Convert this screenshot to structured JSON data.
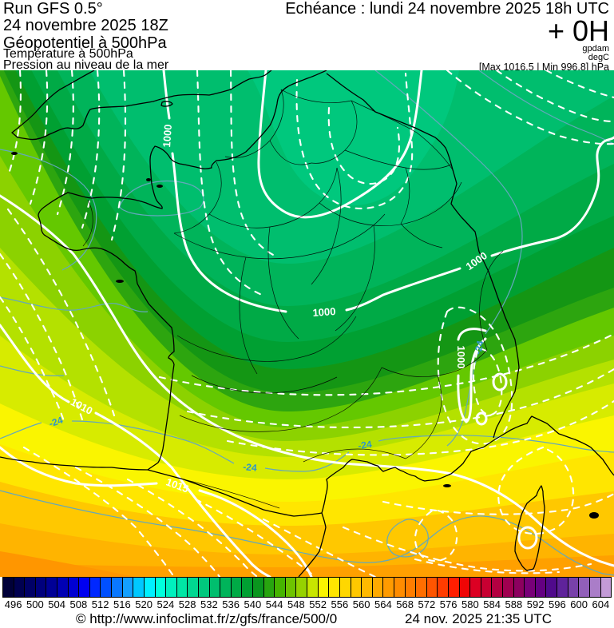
{
  "header": {
    "run_title": "Run GFS 0.5°",
    "run_date": "24 novembre 2025 18Z",
    "field1": "Géopotentiel à 500hPa",
    "field2": "Température à 500hPa",
    "field3": "Pression au niveau de la mer",
    "echeance": "Echéance : lundi 24 novembre 2025 18h UTC",
    "step": "+ 0H",
    "unit_geopotential": "gpdam",
    "unit_temperature": "degC",
    "pressure_minmax": "[Max 1016.5 | Min 996.8] hPa"
  },
  "map": {
    "pressure_contour_labels": [
      {
        "text": "1000"
      },
      {
        "text": "1000"
      },
      {
        "text": "1000"
      },
      {
        "text": "1000"
      },
      {
        "text": "1010"
      },
      {
        "text": "1015"
      }
    ],
    "temperature_contour_labels": [
      {
        "text": "-24"
      },
      {
        "text": "-24"
      },
      {
        "text": "-24"
      },
      {
        "text": "-24"
      }
    ]
  },
  "colorbar": {
    "start_value": 494,
    "step": 2,
    "cells": [
      "#000038",
      "#000050",
      "#000066",
      "#00007D",
      "#000096",
      "#0000B4",
      "#0000D2",
      "#0000F0",
      "#0028FF",
      "#0050FF",
      "#0A78FF",
      "#14A0FF",
      "#00C8FF",
      "#00F0FF",
      "#00FFDC",
      "#00F0BE",
      "#00E6A5",
      "#00D791",
      "#00C87D",
      "#00BE6E",
      "#00B45A",
      "#00AA46",
      "#00A032",
      "#0A961E",
      "#28A50F",
      "#46B400",
      "#6EC300",
      "#96D200",
      "#C8E600",
      "#FAF500",
      "#FFE600",
      "#FFD700",
      "#FFC800",
      "#FFB900",
      "#FFAA00",
      "#FF9B00",
      "#FF8C00",
      "#FF7D00",
      "#FF6E00",
      "#FF5500",
      "#FF3C00",
      "#FF1E00",
      "#F00505",
      "#DC0023",
      "#C80032",
      "#B40041",
      "#A00050",
      "#8C005F",
      "#780078",
      "#640082",
      "#500A8C",
      "#5F239B",
      "#7841AA",
      "#915FB9",
      "#AA7DC8",
      "#C39BD7"
    ],
    "ticks": [
      496,
      500,
      504,
      508,
      512,
      516,
      520,
      524,
      528,
      532,
      536,
      540,
      544,
      548,
      552,
      556,
      560,
      564,
      568,
      572,
      576,
      580,
      584,
      588,
      592,
      596,
      600,
      604
    ]
  },
  "footer": {
    "copyright": "© http://www.infoclimat.fr/z/gfs/france/500/0",
    "timestamp": "24 nov. 2025 21:35 UTC"
  }
}
